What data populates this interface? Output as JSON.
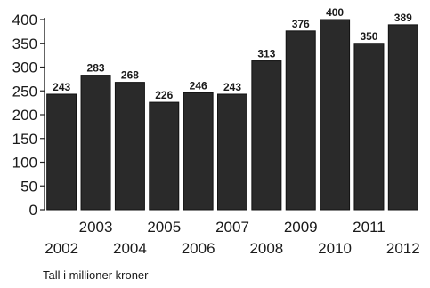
{
  "chart_data": {
    "type": "bar",
    "categories": [
      "2002",
      "2003",
      "2004",
      "2005",
      "2006",
      "2007",
      "2008",
      "2009",
      "2010",
      "2011",
      "2012"
    ],
    "values": [
      243,
      283,
      268,
      226,
      246,
      243,
      313,
      376,
      400,
      350,
      389
    ],
    "data_labels": [
      "243",
      "283",
      "268",
      "226",
      "246",
      "243",
      "313",
      "376",
      "400",
      "350",
      "389"
    ],
    "yticks": [
      0,
      50,
      100,
      150,
      200,
      250,
      300,
      350,
      400
    ],
    "ylim": [
      0,
      400
    ],
    "grid": false,
    "legend": "none",
    "caption": "Tall i millioner kroner",
    "bar_color": "#2a2a2a"
  }
}
